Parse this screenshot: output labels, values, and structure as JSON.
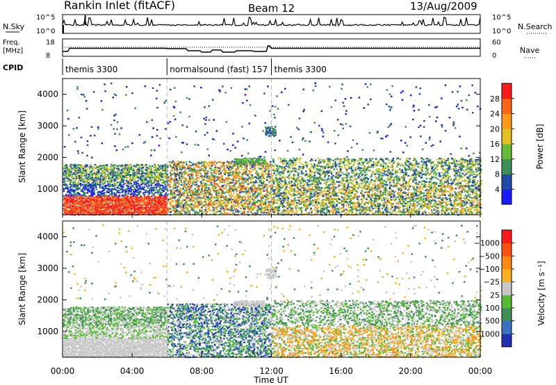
{
  "header": {
    "station": "Rankin Inlet (fitACF)",
    "beam": "Beam 12",
    "date": "13/Aug/2009"
  },
  "noise_panel": {
    "left_label": "N.Sky",
    "right_label": "N.Search",
    "left_ticks": [
      "10^5",
      "10^0"
    ],
    "right_ticks": [
      "10^5",
      "10^0"
    ]
  },
  "freq_panel": {
    "left_label_1": "Freq.",
    "left_label_2": "[MHz]",
    "left_ticks": [
      "18",
      "8"
    ],
    "right_label": "Nave",
    "right_ticks": [
      "60",
      "0"
    ]
  },
  "cpid_panel": {
    "label": "CPID",
    "segments": [
      {
        "label": "themis 3300",
        "start_hour": 0,
        "end_hour": 6
      },
      {
        "label": "normalsound (fast) 157",
        "start_hour": 6,
        "end_hour": 12
      },
      {
        "label": "themis 3300",
        "start_hour": 12,
        "end_hour": 24
      }
    ]
  },
  "x_axis": {
    "label": "Time UT",
    "ticks": [
      "00:00",
      "04:00",
      "08:00",
      "12:00",
      "16:00",
      "20:00",
      "00:00"
    ],
    "range_hours": [
      0,
      24
    ]
  },
  "chart_data": [
    {
      "type": "heatmap",
      "ylabel": "Slant Range [km]",
      "ylim": [
        180,
        4500
      ],
      "y_ticks": [
        1000,
        2000,
        3000,
        4000
      ],
      "colorbar": {
        "label": "Power [dB]",
        "ticks": [
          "4",
          "8",
          "12",
          "16",
          "20",
          "24",
          "28"
        ],
        "colors": [
          "#1a1aff",
          "#1f4aa8",
          "#3d8f56",
          "#66bb3a",
          "#e2c020",
          "#ff9a18",
          "#ff6414",
          "#ff1a1a"
        ]
      }
    },
    {
      "type": "heatmap",
      "ylabel": "Slant Range [km]",
      "ylim": [
        180,
        4500
      ],
      "y_ticks": [
        1000,
        2000,
        3000,
        4000
      ],
      "colorbar": {
        "label": "Velocity [m s⁻¹]",
        "ticks": [
          "1000",
          "500",
          "100",
          "25",
          "−25",
          "−100",
          "−500",
          "−1000"
        ],
        "colors": [
          "#2030b0",
          "#3a70c0",
          "#3d8f56",
          "#55bb33",
          "#c8c8c8",
          "#ffb020",
          "#ff8a10",
          "#ff5010",
          "#ff1a1a"
        ]
      }
    }
  ]
}
